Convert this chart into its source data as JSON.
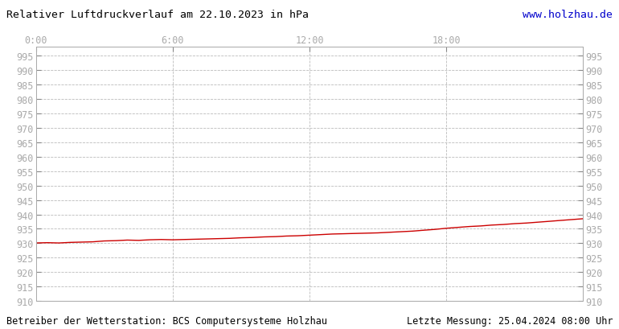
{
  "title": "Relativer Luftdruckverlauf am 22.10.2023 in hPa",
  "url_text": "www.holzhau.de",
  "footer_left": "Betreiber der Wetterstation: BCS Computersysteme Holzhau",
  "footer_right": "Letzte Messung: 25.04.2024 08:00 Uhr",
  "x_tick_labels": [
    "0:00",
    "6:00",
    "12:00",
    "18:00"
  ],
  "x_tick_positions": [
    0,
    0.25,
    0.5,
    0.75
  ],
  "ylim": [
    910,
    998
  ],
  "y_ticks": [
    910,
    915,
    920,
    925,
    930,
    935,
    940,
    945,
    950,
    955,
    960,
    965,
    970,
    975,
    980,
    985,
    990,
    995
  ],
  "line_color": "#cc0000",
  "background_color": "#ffffff",
  "grid_color": "#bbbbbb",
  "title_color": "#000000",
  "url_color": "#0000cc",
  "footer_color": "#000000",
  "label_color": "#aaaaaa",
  "data_x": [
    0.0,
    0.021,
    0.042,
    0.063,
    0.083,
    0.104,
    0.125,
    0.146,
    0.167,
    0.188,
    0.208,
    0.229,
    0.25,
    0.271,
    0.292,
    0.313,
    0.333,
    0.354,
    0.375,
    0.396,
    0.417,
    0.438,
    0.458,
    0.479,
    0.5,
    0.521,
    0.542,
    0.563,
    0.583,
    0.604,
    0.625,
    0.646,
    0.667,
    0.688,
    0.708,
    0.729,
    0.75,
    0.771,
    0.792,
    0.813,
    0.833,
    0.854,
    0.875,
    0.896,
    0.917,
    0.938,
    0.958,
    0.979,
    1.0
  ],
  "data_y": [
    930.1,
    930.2,
    930.1,
    930.3,
    930.4,
    930.5,
    930.8,
    930.9,
    931.1,
    931.0,
    931.2,
    931.3,
    931.2,
    931.3,
    931.4,
    931.5,
    931.6,
    931.7,
    931.9,
    932.0,
    932.2,
    932.3,
    932.5,
    932.6,
    932.8,
    933.0,
    933.2,
    933.3,
    933.4,
    933.5,
    933.6,
    933.8,
    934.0,
    934.2,
    934.5,
    934.8,
    935.2,
    935.5,
    935.8,
    936.0,
    936.3,
    936.5,
    936.8,
    937.0,
    937.3,
    937.6,
    937.9,
    938.2,
    938.5
  ]
}
